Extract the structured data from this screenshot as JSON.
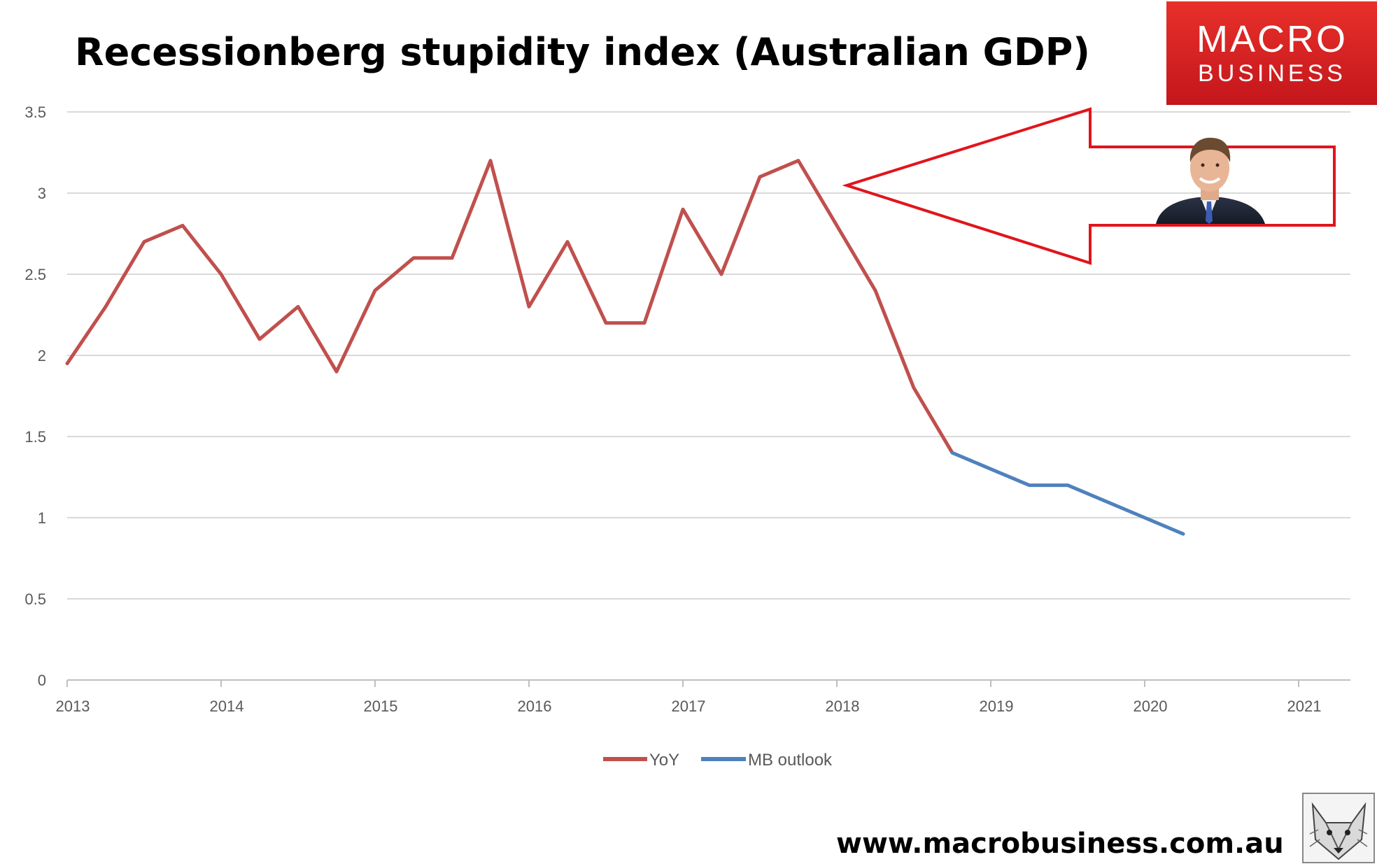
{
  "chart_data": {
    "type": "line",
    "title": "Recessionberg stupidity index (Australian GDP)",
    "xlabel": "",
    "ylabel": "",
    "ylim": [
      0,
      3.5
    ],
    "y_ticks": [
      0,
      0.5,
      1,
      1.5,
      2,
      2.5,
      3,
      3.5
    ],
    "y_tick_labels": [
      "0",
      "0.5",
      "1",
      "1.5",
      "2",
      "2.5",
      "3",
      "3.5"
    ],
    "xlim": [
      2013,
      2021.3
    ],
    "x_ticks": [
      2013,
      2014,
      2015,
      2016,
      2017,
      2018,
      2019,
      2020,
      2021
    ],
    "x_tick_labels": [
      "2013",
      "2014",
      "2015",
      "2016",
      "2017",
      "2018",
      "2019",
      "2020",
      "2021"
    ],
    "grid": true,
    "legend": "bottom",
    "series": [
      {
        "name": "YoY",
        "color": "#c0504d",
        "x": [
          2013.0,
          2013.25,
          2013.5,
          2013.75,
          2014.0,
          2014.25,
          2014.5,
          2014.75,
          2015.0,
          2015.25,
          2015.5,
          2015.75,
          2016.0,
          2016.25,
          2016.5,
          2016.75,
          2017.0,
          2017.25,
          2017.5,
          2017.75,
          2018.0,
          2018.25,
          2018.5,
          2018.75
        ],
        "values": [
          1.95,
          2.3,
          2.7,
          2.8,
          2.5,
          2.1,
          2.3,
          1.9,
          2.4,
          2.6,
          2.6,
          3.2,
          2.3,
          2.7,
          2.2,
          2.2,
          2.9,
          2.5,
          3.1,
          3.2,
          2.8,
          2.4,
          1.8,
          1.4
        ]
      },
      {
        "name": "MB outlook",
        "color": "#4f81bd",
        "x": [
          2018.75,
          2019.0,
          2019.25,
          2019.5,
          2019.75,
          2020.0,
          2020.25
        ],
        "values": [
          1.4,
          1.3,
          1.2,
          1.2,
          1.1,
          1.0,
          0.9
        ]
      }
    ]
  },
  "logo": {
    "line1": "MACRO",
    "line2": "BUSINESS",
    "color": "#d7261e"
  },
  "footer": {
    "url": "www.macrobusiness.com.au"
  },
  "annotation": {
    "arrow_color": "#e1141c",
    "photo": "person-photo"
  },
  "icons": {
    "corner_logo": "wolf-icon"
  }
}
